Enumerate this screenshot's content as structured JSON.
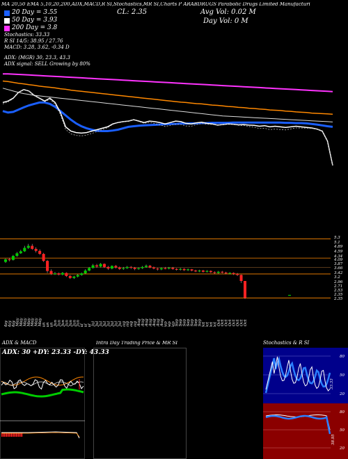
{
  "header": {
    "top_line": "MA 20,50 EMA 5,10,20,200,ADX,MACD,R SI,Stochastics,MR SI,Charts P ARABDRUGS Parabolic Drugs Limited Manufacturi",
    "ma_labels": [
      "20 Day = 3.55",
      "50 Day = 3.93",
      "200 Day = 3.8"
    ],
    "ma_colors": [
      "#1a5fff",
      "#ffffff",
      "#ff33ff"
    ],
    "stochastics": "Stochastics: 33.33",
    "rsi": "R                    SI 14/5: 38.95 / 27.76",
    "macd": "MACD: 3.28, 3.62, -0.34  D",
    "adx": "ADX:                    (MGR) 30, 23.3, 43.3",
    "adx_signal": "ADX  signal: SELL Growing by 80%",
    "close": "CL: 2.35",
    "avg_vol": "Avg Vol: 0.02  M",
    "day_vol": "Day Vol: 0   M"
  },
  "colors": {
    "bg": "#000000",
    "up": "#00cc00",
    "down": "#ff2222",
    "orange": "#ff8800",
    "blue": "#1a5fff",
    "magenta": "#ff33ff",
    "brown": "#8b5a2b",
    "panel_red": "#8b0000",
    "panel_blue": "#00008b"
  },
  "chart_data": [
    {
      "type": "line",
      "name": "main-price-chart",
      "x": [
        "2 May",
        "6 May",
        "8 May",
        "10 May",
        "15 May",
        "17 May",
        "21 May",
        "24 May",
        "28 May",
        "30 May",
        "3 Jun",
        "5 Jun",
        "7 Jun",
        "11 Jun",
        "13 Jun",
        "17 Jun",
        "19 Jun",
        "21 Jun",
        "25 Jun",
        "27 Jun",
        "2 Jul",
        "4 Jul",
        "8 Jul",
        "10 Jul",
        "12 Jul",
        "16 Jul",
        "18 Jul",
        "22 Jul",
        "24 Jul",
        "26 Jul",
        "30 Jul",
        "1 Aug",
        "5 Aug",
        "7 Aug",
        "9 Aug",
        "13 Aug",
        "16 Aug",
        "20 Aug",
        "22 Aug",
        "26 Aug",
        "28 Aug",
        "30 Aug",
        "3 Sep",
        "5 Sep",
        "9 Sep",
        "11 Sep",
        "13 Sep",
        "17 Sep",
        "19 Sep",
        "23 Sep",
        "25 Sep",
        "27 Sep",
        "1 Oct",
        "3 Oct",
        "7 Oct",
        "9 Oct",
        "11 Oct",
        "15 Oct",
        "17 Oct",
        "21 Oct",
        "23 Oct",
        "25 Oct",
        "29 Oct",
        "31 Oct"
      ],
      "series": [
        {
          "name": "ema-orange",
          "values": [
            5.3,
            5.28,
            5.25,
            5.22,
            5.2,
            5.17,
            5.15,
            5.12,
            5.1,
            5.08,
            5.06,
            5.03,
            5.01,
            4.98,
            4.96,
            4.94,
            4.92,
            4.9,
            4.88,
            4.86,
            4.84,
            4.82,
            4.8,
            4.78,
            4.76,
            4.74,
            4.72,
            4.7,
            4.68,
            4.66,
            4.64,
            4.62,
            4.6,
            4.58,
            4.56,
            4.55,
            4.53,
            4.51,
            4.5,
            4.48,
            4.46,
            4.45,
            4.43,
            4.41,
            4.4,
            4.38,
            4.37,
            4.35,
            4.34,
            4.32,
            4.31,
            4.29,
            4.28,
            4.27,
            4.25,
            4.24,
            4.22,
            4.21,
            4.2,
            4.18,
            4.17,
            4.16,
            4.15,
            4.14
          ]
        },
        {
          "name": "ema-magenta",
          "values": [
            5.55,
            5.55,
            5.54,
            5.53,
            5.52,
            5.51,
            5.5,
            5.49,
            5.48,
            5.47,
            5.46,
            5.45,
            5.44,
            5.43,
            5.42,
            5.41,
            5.4,
            5.39,
            5.38,
            5.37,
            5.36,
            5.35,
            5.34,
            5.33,
            5.32,
            5.31,
            5.3,
            5.29,
            5.28,
            5.27,
            5.26,
            5.25,
            5.24,
            5.23,
            5.22,
            5.21,
            5.2,
            5.19,
            5.18,
            5.17,
            5.16,
            5.15,
            5.14,
            5.13,
            5.12,
            5.11,
            5.1,
            5.09,
            5.08,
            5.07,
            5.06,
            5.05,
            5.04,
            5.03,
            5.02,
            5.01,
            5.0,
            4.99,
            4.98,
            4.97,
            4.96,
            4.95,
            4.94,
            4.93
          ]
        },
        {
          "name": "ema-white-slow",
          "values": [
            5.05,
            5.0,
            4.95,
            4.9,
            4.86,
            4.83,
            4.8,
            4.78,
            4.76,
            4.74,
            4.72,
            4.7,
            4.68,
            4.66,
            4.64,
            4.62,
            4.6,
            4.58,
            4.56,
            4.54,
            4.52,
            4.5,
            4.48,
            4.46,
            4.44,
            4.42,
            4.4,
            4.38,
            4.36,
            4.34,
            4.32,
            4.3,
            4.28,
            4.26,
            4.24,
            4.22,
            4.2,
            4.18,
            4.16,
            4.14,
            4.12,
            4.1,
            4.08,
            4.07,
            4.06,
            4.05,
            4.04,
            4.03,
            4.02,
            4.01,
            4.0,
            3.99,
            3.98,
            3.97,
            3.96,
            3.95,
            3.94,
            3.93,
            3.92,
            3.91,
            3.9,
            3.89,
            3.88,
            3.87
          ]
        },
        {
          "name": "sma-blue",
          "values": [
            4.25,
            4.2,
            4.22,
            4.3,
            4.38,
            4.45,
            4.5,
            4.55,
            4.55,
            4.5,
            4.4,
            4.25,
            4.1,
            3.95,
            3.82,
            3.72,
            3.65,
            3.6,
            3.56,
            3.55,
            3.55,
            3.57,
            3.6,
            3.65,
            3.7,
            3.72,
            3.74,
            3.75,
            3.76,
            3.77,
            3.78,
            3.79,
            3.8,
            3.8,
            3.81,
            3.81,
            3.82,
            3.82,
            3.83,
            3.83,
            3.84,
            3.84,
            3.84,
            3.84,
            3.85,
            3.85,
            3.85,
            3.85,
            3.85,
            3.85,
            3.85,
            3.85,
            3.85,
            3.85,
            3.84,
            3.84,
            3.83,
            3.83,
            3.82,
            3.8,
            3.78,
            3.75,
            3.72,
            3.7
          ]
        },
        {
          "name": "price-white",
          "values": [
            4.55,
            4.6,
            4.7,
            4.9,
            5.0,
            4.95,
            4.8,
            4.7,
            4.6,
            4.7,
            4.55,
            4.2,
            3.7,
            3.55,
            3.5,
            3.48,
            3.5,
            3.55,
            3.6,
            3.65,
            3.7,
            3.8,
            3.85,
            3.88,
            3.9,
            3.95,
            3.9,
            3.85,
            3.9,
            3.88,
            3.85,
            3.8,
            3.85,
            3.9,
            3.88,
            3.82,
            3.8,
            3.84,
            3.86,
            3.82,
            3.8,
            3.76,
            3.78,
            3.8,
            3.79,
            3.77,
            3.78,
            3.76,
            3.75,
            3.72,
            3.74,
            3.7,
            3.72,
            3.7,
            3.68,
            3.7,
            3.72,
            3.7,
            3.68,
            3.66,
            3.62,
            3.55,
            3.2,
            2.35
          ]
        }
      ]
    },
    {
      "type": "bar",
      "name": "candlestick-chart",
      "price_axis_labels": [
        "5.3",
        "5.1",
        "4.89",
        "4.59",
        "4.34",
        "4.09",
        "3.87",
        "3.66",
        "3.42",
        "3.2",
        "2.96",
        "2.71",
        "2.53",
        "2.35",
        "2.35"
      ],
      "date_labels": [
        "2 May",
        "6 May",
        "8 May",
        "10 May",
        "15 May",
        "17 May",
        "21 May",
        "24 May",
        "28 May",
        "30 May",
        "3 Jun",
        "5 Jun",
        "7 Jun",
        "11 Jun",
        "13 Jun",
        "17 Jun",
        "19 Jun",
        "21 Jun",
        "25 Jun",
        "27 Jun",
        "2 Jul",
        "4 Jul",
        "8 Jul",
        "10 Jul",
        "12 Jul",
        "16 Jul",
        "18 Jul",
        "22 Jul",
        "24 Jul",
        "26 Jul",
        "30 Jul",
        "1 Aug",
        "5 Aug",
        "7 Aug",
        "9 Aug",
        "13 Aug",
        "16 Aug",
        "20 Aug",
        "22 Aug",
        "26 Aug",
        "28 Aug",
        "30 Aug",
        "3 Sep",
        "5 Sep",
        "9 Sep",
        "11 Sep",
        "13 Sep",
        "17 Sep",
        "19 Sep",
        "23 Sep",
        "25 Sep",
        "27 Sep",
        "1 Oct",
        "3 Oct",
        "7 Oct",
        "9 Oct",
        "11 Oct",
        "15 Oct",
        "17 Oct",
        "21 Oct",
        "23 Oct",
        "25 Oct",
        "29 Oct",
        "31 Oct"
      ],
      "candles": [
        {
          "o": 4.15,
          "c": 4.28,
          "h": 4.32,
          "l": 4.1,
          "up": true
        },
        {
          "o": 4.28,
          "c": 4.25,
          "h": 4.35,
          "l": 4.18,
          "up": false
        },
        {
          "o": 4.25,
          "c": 4.45,
          "h": 4.5,
          "l": 4.22,
          "up": true
        },
        {
          "o": 4.45,
          "c": 4.58,
          "h": 4.65,
          "l": 4.4,
          "up": true
        },
        {
          "o": 4.58,
          "c": 4.68,
          "h": 4.75,
          "l": 4.55,
          "up": true
        },
        {
          "o": 4.68,
          "c": 4.85,
          "h": 4.95,
          "l": 4.65,
          "up": true
        },
        {
          "o": 4.85,
          "c": 4.95,
          "h": 5.05,
          "l": 4.8,
          "up": true
        },
        {
          "o": 4.95,
          "c": 4.8,
          "h": 5.05,
          "l": 4.75,
          "up": false
        },
        {
          "o": 4.8,
          "c": 4.7,
          "h": 4.88,
          "l": 4.62,
          "up": false
        },
        {
          "o": 4.7,
          "c": 4.55,
          "h": 4.78,
          "l": 4.5,
          "up": false
        },
        {
          "o": 4.55,
          "c": 4.2,
          "h": 4.6,
          "l": 4.15,
          "up": false
        },
        {
          "o": 4.2,
          "c": 3.7,
          "h": 4.25,
          "l": 3.6,
          "up": false
        },
        {
          "o": 3.7,
          "c": 3.55,
          "h": 3.78,
          "l": 3.5,
          "up": false
        },
        {
          "o": 3.55,
          "c": 3.58,
          "h": 3.65,
          "l": 3.5,
          "up": true
        },
        {
          "o": 3.58,
          "c": 3.52,
          "h": 3.62,
          "l": 3.48,
          "up": false
        },
        {
          "o": 3.52,
          "c": 3.6,
          "h": 3.65,
          "l": 3.48,
          "up": true
        },
        {
          "o": 3.6,
          "c": 3.45,
          "h": 3.63,
          "l": 3.4,
          "up": false
        },
        {
          "o": 3.45,
          "c": 3.35,
          "h": 3.5,
          "l": 3.3,
          "up": false
        },
        {
          "o": 3.35,
          "c": 3.42,
          "h": 3.46,
          "l": 3.3,
          "up": true
        },
        {
          "o": 3.42,
          "c": 3.5,
          "h": 3.55,
          "l": 3.38,
          "up": true
        },
        {
          "o": 3.5,
          "c": 3.58,
          "h": 3.62,
          "l": 3.46,
          "up": true
        },
        {
          "o": 3.58,
          "c": 3.72,
          "h": 3.78,
          "l": 3.55,
          "up": true
        },
        {
          "o": 3.72,
          "c": 3.85,
          "h": 3.9,
          "l": 3.68,
          "up": true
        },
        {
          "o": 3.85,
          "c": 3.98,
          "h": 4.05,
          "l": 3.82,
          "up": true
        },
        {
          "o": 3.98,
          "c": 3.92,
          "h": 4.05,
          "l": 3.85,
          "up": false
        },
        {
          "o": 3.92,
          "c": 4.05,
          "h": 4.1,
          "l": 3.88,
          "up": true
        },
        {
          "o": 4.05,
          "c": 3.9,
          "h": 4.08,
          "l": 3.85,
          "up": false
        },
        {
          "o": 3.9,
          "c": 3.82,
          "h": 3.95,
          "l": 3.75,
          "up": false
        },
        {
          "o": 3.82,
          "c": 3.95,
          "h": 3.98,
          "l": 3.78,
          "up": true
        },
        {
          "o": 3.95,
          "c": 3.88,
          "h": 4.0,
          "l": 3.82,
          "up": false
        },
        {
          "o": 3.88,
          "c": 3.8,
          "h": 3.92,
          "l": 3.75,
          "up": false
        },
        {
          "o": 3.8,
          "c": 3.84,
          "h": 3.9,
          "l": 3.76,
          "up": true
        },
        {
          "o": 3.84,
          "c": 3.9,
          "h": 3.95,
          "l": 3.8,
          "up": true
        },
        {
          "o": 3.9,
          "c": 3.86,
          "h": 3.94,
          "l": 3.8,
          "up": false
        },
        {
          "o": 3.86,
          "c": 3.8,
          "h": 3.9,
          "l": 3.74,
          "up": false
        },
        {
          "o": 3.8,
          "c": 3.84,
          "h": 3.88,
          "l": 3.76,
          "up": true
        },
        {
          "o": 3.84,
          "c": 3.9,
          "h": 3.95,
          "l": 3.8,
          "up": true
        },
        {
          "o": 3.9,
          "c": 3.96,
          "h": 4.02,
          "l": 3.86,
          "up": true
        },
        {
          "o": 3.96,
          "c": 3.88,
          "h": 4.0,
          "l": 3.84,
          "up": false
        },
        {
          "o": 3.88,
          "c": 3.82,
          "h": 3.92,
          "l": 3.78,
          "up": false
        },
        {
          "o": 3.82,
          "c": 3.78,
          "h": 3.86,
          "l": 3.72,
          "up": false
        },
        {
          "o": 3.78,
          "c": 3.84,
          "h": 3.88,
          "l": 3.74,
          "up": true
        },
        {
          "o": 3.84,
          "c": 3.82,
          "h": 3.9,
          "l": 3.78,
          "up": false
        },
        {
          "o": 3.82,
          "c": 3.86,
          "h": 3.9,
          "l": 3.78,
          "up": true
        },
        {
          "o": 3.86,
          "c": 3.8,
          "h": 3.9,
          "l": 3.76,
          "up": false
        },
        {
          "o": 3.8,
          "c": 3.76,
          "h": 3.84,
          "l": 3.72,
          "up": false
        },
        {
          "o": 3.76,
          "c": 3.8,
          "h": 3.85,
          "l": 3.72,
          "up": true
        },
        {
          "o": 3.8,
          "c": 3.74,
          "h": 3.84,
          "l": 3.7,
          "up": false
        },
        {
          "o": 3.74,
          "c": 3.78,
          "h": 3.82,
          "l": 3.7,
          "up": true
        },
        {
          "o": 3.78,
          "c": 3.72,
          "h": 3.8,
          "l": 3.68,
          "up": false
        },
        {
          "o": 3.72,
          "c": 3.68,
          "h": 3.76,
          "l": 3.64,
          "up": false
        },
        {
          "o": 3.68,
          "c": 3.72,
          "h": 3.76,
          "l": 3.64,
          "up": true
        },
        {
          "o": 3.72,
          "c": 3.66,
          "h": 3.75,
          "l": 3.62,
          "up": false
        },
        {
          "o": 3.66,
          "c": 3.7,
          "h": 3.74,
          "l": 3.62,
          "up": true
        },
        {
          "o": 3.7,
          "c": 3.64,
          "h": 3.73,
          "l": 3.6,
          "up": false
        },
        {
          "o": 3.64,
          "c": 3.6,
          "h": 3.68,
          "l": 3.56,
          "up": false
        },
        {
          "o": 3.6,
          "c": 3.66,
          "h": 3.7,
          "l": 3.56,
          "up": true
        },
        {
          "o": 3.66,
          "c": 3.62,
          "h": 3.7,
          "l": 3.58,
          "up": false
        },
        {
          "o": 3.62,
          "c": 3.58,
          "h": 3.66,
          "l": 3.54,
          "up": false
        },
        {
          "o": 3.58,
          "c": 3.6,
          "h": 3.64,
          "l": 3.54,
          "up": true
        },
        {
          "o": 3.6,
          "c": 3.55,
          "h": 3.63,
          "l": 3.5,
          "up": false
        },
        {
          "o": 3.55,
          "c": 3.5,
          "h": 3.6,
          "l": 3.45,
          "up": false
        },
        {
          "o": 3.5,
          "c": 3.2,
          "h": 3.52,
          "l": 3.1,
          "up": false
        },
        {
          "o": 3.2,
          "c": 2.35,
          "h": 3.2,
          "l": 2.3,
          "up": false
        }
      ],
      "orange_levels": [
        5.3,
        4.34,
        3.55,
        2.35
      ]
    },
    {
      "type": "line",
      "name": "adx-macd-panel",
      "title": "ADX  & MACD",
      "subtitle": "ADX: 30  +DY: 23.33  -DY: 43.33"
    },
    {
      "type": "table",
      "name": "intraday-panel",
      "title": "Intra  Day Trading Price  & MR                        SI"
    },
    {
      "type": "line",
      "name": "stochastics-rsi-panel",
      "title": "Stochastics & R                    SI",
      "stoch_labels": [
        "80",
        "50",
        "20"
      ],
      "rsi_labels": [
        "80",
        "50",
        "20"
      ],
      "stoch_value": "33.33",
      "rsi_value": "38.95"
    }
  ]
}
